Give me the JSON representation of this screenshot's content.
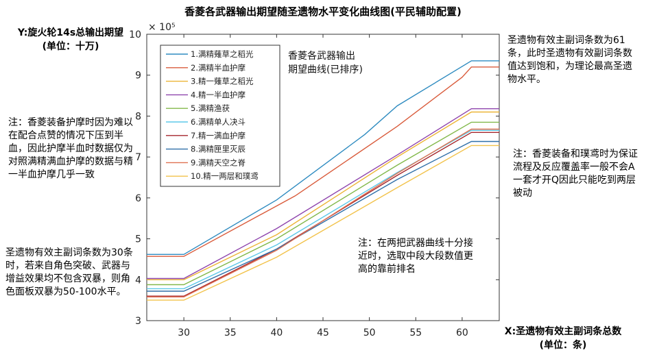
{
  "notes": {
    "left_top": "注：香菱装备护摩时因为难以在配合点赞的情况下压到半血，因此护摩半血时数据仅为对照满精满血护摩的数据与精一半血护摩几乎一致",
    "left_bottom": "圣遗物有效主副词条数为30条时，若来自角色突破、武器与增益效果均不包含双暴，则角色面板双暴为50-100水平。",
    "right_top": "圣遗物有效主副词条数为61条，此时圣遗物有效副词条数值达到饱和，为理论最高圣遗物水平。",
    "right_bottom": "注：香菱装备和璞鸢时为保证流程及反应覆盖率一般不会A一套才开Q因此只能吃到两层被动",
    "inside": "注：在两把武器曲线十分接近时，选取中段大段数值更高的靠前排名"
  },
  "chart_data": {
    "type": "line",
    "title": "香菱各武器输出期望随圣遗物水平变化曲线图(平民辅助配置)",
    "ylabel_line1": "Y:旋火轮14s总输出期望",
    "ylabel_line2": "(单位：十万)",
    "xlabel_line1": "X:圣遗物有效主副词条总数",
    "xlabel_line2": "(单位：条)",
    "exponent_label": "× 10⁵",
    "annotation_line1": "香菱各武器输出",
    "annotation_line2": "期望曲线(已排序)",
    "xlim": [
      26,
      64
    ],
    "ylim": [
      3,
      10
    ],
    "x_ticks": [
      30,
      35,
      40,
      45,
      50,
      55,
      60
    ],
    "y_ticks": [
      3,
      4,
      5,
      6,
      7,
      8,
      9,
      10
    ],
    "legend_position": "top-left",
    "grid": false,
    "series": [
      {
        "name": "1.满精薙草之稻光",
        "color": "#2e8bc0",
        "x": [
          26,
          30,
          40,
          49.5,
          53,
          61,
          64
        ],
        "y": [
          4.62,
          4.62,
          5.95,
          7.55,
          8.25,
          9.35,
          9.35
        ]
      },
      {
        "name": "2.满精半血护摩",
        "color": "#d95b3b",
        "x": [
          26,
          30,
          42,
          53,
          60,
          61,
          64
        ],
        "y": [
          4.57,
          4.57,
          6.05,
          7.75,
          8.95,
          9.2,
          9.2
        ]
      },
      {
        "name": "3.精一薙草之稻光",
        "color": "#ecb435",
        "x": [
          26,
          30,
          40,
          53,
          61,
          64
        ],
        "y": [
          4.0,
          4.0,
          5.1,
          7.0,
          8.1,
          8.1
        ]
      },
      {
        "name": "4.精一半血护摩",
        "color": "#8e44ad",
        "x": [
          26,
          30,
          40,
          53,
          61,
          64
        ],
        "y": [
          4.03,
          4.03,
          5.25,
          7.05,
          8.18,
          8.18
        ]
      },
      {
        "name": "5.满精渔获",
        "color": "#82b84a",
        "x": [
          26,
          30,
          40,
          53,
          61,
          64
        ],
        "y": [
          3.88,
          3.88,
          5.0,
          6.8,
          7.85,
          7.85
        ]
      },
      {
        "name": "6.满精单人决斗",
        "color": "#5bc8e8",
        "x": [
          26,
          30,
          40,
          53,
          61,
          64
        ],
        "y": [
          3.78,
          3.78,
          4.85,
          6.62,
          7.65,
          7.65
        ]
      },
      {
        "name": "7.精一满血护摩",
        "color": "#a5262c",
        "x": [
          26,
          30,
          40,
          53,
          61,
          64
        ],
        "y": [
          3.6,
          3.6,
          4.75,
          6.55,
          7.6,
          7.6
        ]
      },
      {
        "name": "8.满精匣里灭辰",
        "color": "#2f6fa8",
        "x": [
          26,
          30,
          40,
          53,
          61,
          64
        ],
        "y": [
          3.72,
          3.72,
          4.75,
          6.45,
          7.38,
          7.38
        ]
      },
      {
        "name": "9.满精天空之脊",
        "color": "#e07050",
        "x": [
          26,
          30,
          40,
          53,
          61,
          64
        ],
        "y": [
          3.58,
          3.58,
          4.72,
          6.6,
          7.68,
          7.68
        ]
      },
      {
        "name": "10.精一两层和璞鸢",
        "color": "#f2c24a",
        "x": [
          26,
          30,
          40,
          53,
          61,
          64
        ],
        "y": [
          3.5,
          3.5,
          4.55,
          6.25,
          7.28,
          7.28
        ]
      }
    ]
  }
}
